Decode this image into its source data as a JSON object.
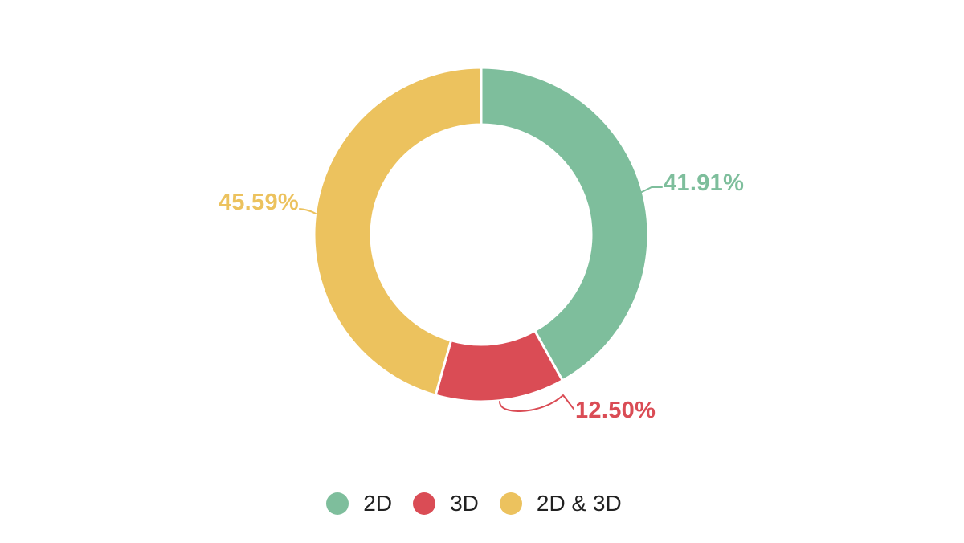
{
  "chart_data": {
    "type": "pie",
    "subtype": "donut",
    "background": "#FFFFFF",
    "categories": [
      "2D",
      "3D",
      "2D & 3D"
    ],
    "values": [
      41.91,
      12.5,
      45.59
    ],
    "value_labels": [
      "41.91%",
      "12.50%",
      "45.59%"
    ],
    "colors": [
      "#7EBE9C",
      "#DA4C55",
      "#ECC25E"
    ],
    "start_angle": "12-oclock",
    "direction": "clockwise",
    "inner_radius_ratio": 0.66,
    "slice_gap_color": "#FFFFFF",
    "legend": {
      "position": "bottom",
      "text_color": "#212121",
      "items": [
        {
          "label": "2D",
          "color": "#7EBE9C"
        },
        {
          "label": "3D",
          "color": "#DA4C55"
        },
        {
          "label": "2D & 3D",
          "color": "#ECC25E"
        }
      ]
    }
  }
}
